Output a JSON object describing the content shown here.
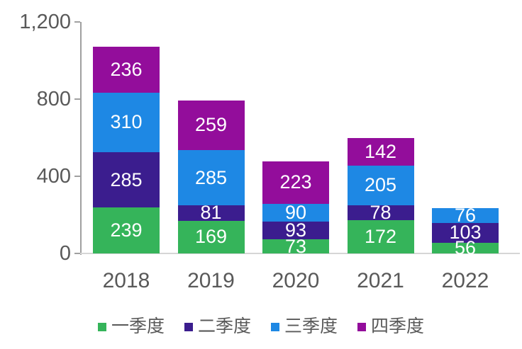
{
  "chart_data": {
    "type": "bar",
    "stacked": true,
    "title": "",
    "xlabel": "",
    "ylabel": "",
    "categories": [
      "2018",
      "2019",
      "2020",
      "2021",
      "2022"
    ],
    "series": [
      {
        "name": "一季度",
        "color": "#35b45a",
        "values": [
          239,
          169,
          73,
          172,
          56
        ]
      },
      {
        "name": "二季度",
        "color": "#3b1d8e",
        "values": [
          285,
          81,
          93,
          78,
          103
        ]
      },
      {
        "name": "三季度",
        "color": "#1e88e4",
        "values": [
          310,
          285,
          90,
          205,
          76
        ]
      },
      {
        "name": "四季度",
        "color": "#930d9b",
        "values": [
          236,
          259,
          223,
          142,
          0
        ]
      }
    ],
    "value_labels_shown": true,
    "ylim": [
      0,
      1200
    ],
    "ytick_values": [
      0,
      400,
      800,
      1200
    ],
    "ytick_labels": [
      "0",
      "400",
      "800",
      "1,200"
    ],
    "grid": false,
    "legend_position": "bottom",
    "text_color": "#595959",
    "axis_line_color": "#a0a0a0",
    "baseline_color": "#d6d6d6",
    "value_label_color": "#ffffff"
  }
}
